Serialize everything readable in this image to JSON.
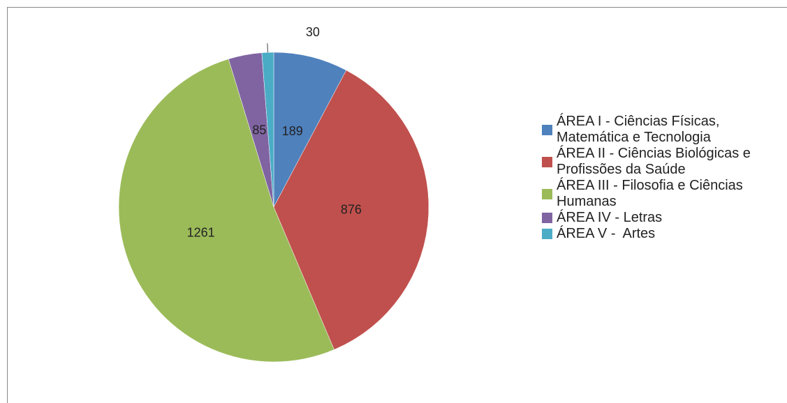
{
  "chart_data": {
    "type": "pie",
    "categories": [
      "ÁREA I - Ciências Físicas, Matemática e Tecnologia",
      "ÁREA II - Ciências Biológicas e Profissões da Saúde",
      "ÁREA III - Filosofia e Ciências Humanas",
      "ÁREA IV - Letras",
      "ÁREA V -  Artes"
    ],
    "values": [
      189,
      876,
      1261,
      85,
      30
    ],
    "colors": [
      "#4f81bd",
      "#c0504d",
      "#9bbb59",
      "#8064a2",
      "#4bacc6"
    ],
    "legend": "right"
  }
}
